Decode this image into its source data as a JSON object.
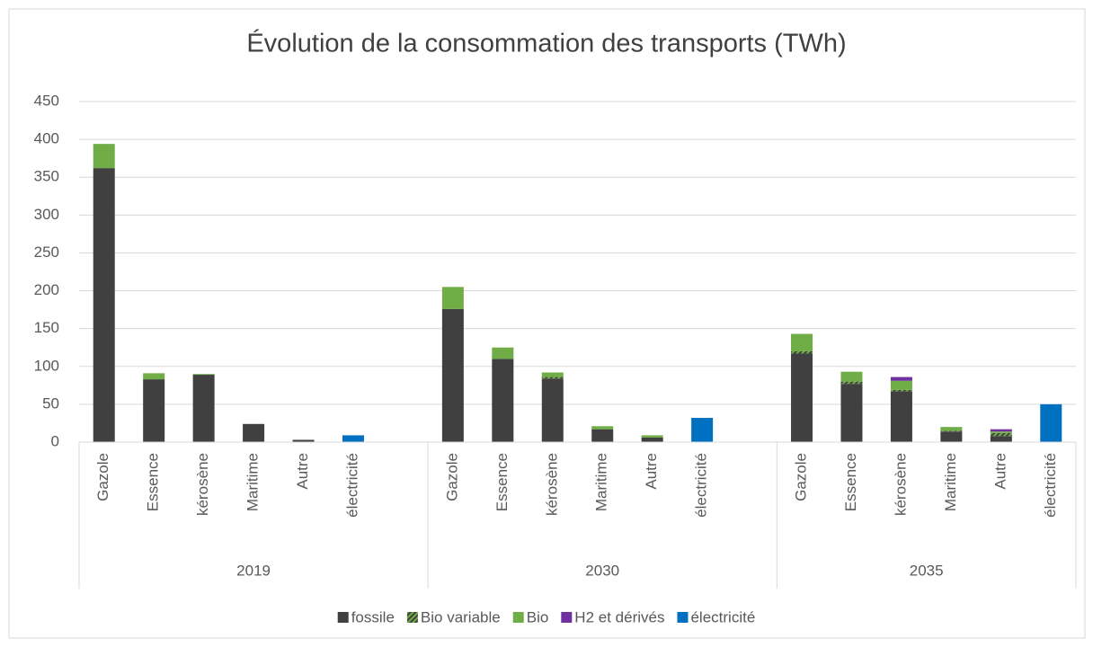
{
  "chart_data": {
    "type": "stacked-bar",
    "title": "Évolution de la consommation des transports (TWh)",
    "groups": [
      {
        "name": "2019",
        "categories": [
          "Gazole",
          "Essence",
          "kérosène",
          "Maritime",
          "Autre",
          "électricité",
          null
        ]
      },
      {
        "name": "2030",
        "categories": [
          "Gazole",
          "Essence",
          "kérosène",
          "Maritime",
          "Autre",
          "électricité",
          null
        ]
      },
      {
        "name": "2035",
        "categories": [
          "Gazole",
          "Essence",
          "kérosène",
          "Maritime",
          "Autre",
          "électricité"
        ]
      }
    ],
    "series": [
      {
        "name": "fossile",
        "color": "#404040",
        "values": [
          362,
          83,
          89,
          24,
          3,
          0,
          null,
          176,
          110,
          84,
          17,
          6,
          0,
          null,
          117,
          77,
          67,
          14,
          8,
          0
        ]
      },
      {
        "name": "Bio variable",
        "color": "#70ad47",
        "hatch": true,
        "values": [
          0,
          0,
          0,
          0,
          0,
          0,
          null,
          0,
          0,
          2,
          0,
          0,
          0,
          null,
          3,
          3,
          2,
          1,
          4,
          0
        ]
      },
      {
        "name": "Bio",
        "color": "#70ad47",
        "values": [
          32,
          8,
          1,
          0,
          0,
          0,
          null,
          29,
          15,
          6,
          4,
          3,
          0,
          null,
          23,
          13,
          12,
          5,
          2,
          0
        ]
      },
      {
        "name": "H2 et dérivés",
        "color": "#7030a0",
        "values": [
          0,
          0,
          0,
          0,
          0,
          0,
          null,
          0,
          0,
          0,
          0,
          0,
          0,
          null,
          0,
          0,
          5,
          0,
          3,
          0
        ]
      },
      {
        "name": "électricité",
        "color": "#0070c0",
        "values": [
          0,
          0,
          0,
          0,
          0,
          9,
          null,
          0,
          0,
          0,
          0,
          0,
          32,
          null,
          0,
          0,
          0,
          0,
          0,
          50
        ]
      }
    ],
    "ylim": [
      0,
      450
    ],
    "yticks": [
      0,
      50,
      100,
      150,
      200,
      250,
      300,
      350,
      400,
      450
    ],
    "grid": true,
    "legend": "bottom"
  }
}
